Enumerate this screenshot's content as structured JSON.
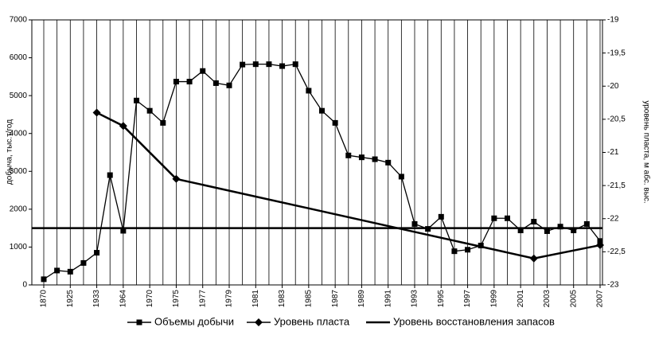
{
  "chart_data": {
    "type": "line",
    "ylabel": "добыча, тыс.т/год",
    "y2label": "уровень пласта, м абс. выс.",
    "categories": [
      "1870",
      null,
      "1925",
      null,
      "1933",
      null,
      "1964",
      null,
      "1970",
      null,
      "1975",
      null,
      "1977",
      null,
      "1979",
      null,
      "1981",
      null,
      "1983",
      null,
      "1985",
      null,
      "1987",
      null,
      "1989",
      null,
      "1991",
      null,
      "1993",
      null,
      "1995",
      null,
      "1997",
      null,
      "1999",
      null,
      "2001",
      null,
      "2003",
      null,
      "2005",
      null,
      "2007"
    ],
    "ylim": [
      0,
      7000
    ],
    "yticks": [
      0,
      1000,
      2000,
      3000,
      4000,
      5000,
      6000,
      7000
    ],
    "y2lim": [
      -23,
      -19
    ],
    "y2ticks": [
      -23,
      {
        "value": -22.5,
        "label": "-22,5"
      },
      -22,
      {
        "value": -21.5,
        "label": "-21,5"
      },
      -21,
      {
        "value": -20.5,
        "label": "-20,5"
      },
      -20,
      {
        "value": -19.5,
        "label": "-19,5"
      },
      -19
    ],
    "grid": true,
    "legend": "bottom",
    "series": [
      {
        "name": "Объемы добычи",
        "color": "#000000",
        "marker": "square",
        "values": [
          150,
          380,
          350,
          580,
          850,
          2900,
          1430,
          4870,
          4600,
          4280,
          5370,
          5370,
          5650,
          5330,
          5270,
          5820,
          5830,
          5830,
          5780,
          5830,
          5130,
          4600,
          4280,
          3420,
          3370,
          3320,
          3230,
          2860,
          1610,
          1480,
          1800,
          890,
          930,
          1040,
          1760,
          1760,
          1440,
          1670,
          1420,
          1540,
          1440,
          1610,
          1160
        ]
      },
      {
        "name": "Уровень пласта",
        "color": "#000000",
        "marker": "diamond",
        "axis": "y2",
        "connect_gaps": true,
        "values": [
          null,
          null,
          null,
          null,
          -20.4,
          null,
          -20.6,
          null,
          null,
          null,
          -21.4,
          null,
          null,
          null,
          null,
          null,
          null,
          null,
          null,
          null,
          null,
          null,
          null,
          null,
          null,
          null,
          null,
          null,
          null,
          null,
          null,
          null,
          null,
          null,
          null,
          null,
          null,
          -22.6,
          null,
          null,
          null,
          null,
          -22.4
        ]
      },
      {
        "name": "Уровень восстановления запасов",
        "color": "#000000",
        "marker": "none",
        "value": 1500
      }
    ]
  }
}
